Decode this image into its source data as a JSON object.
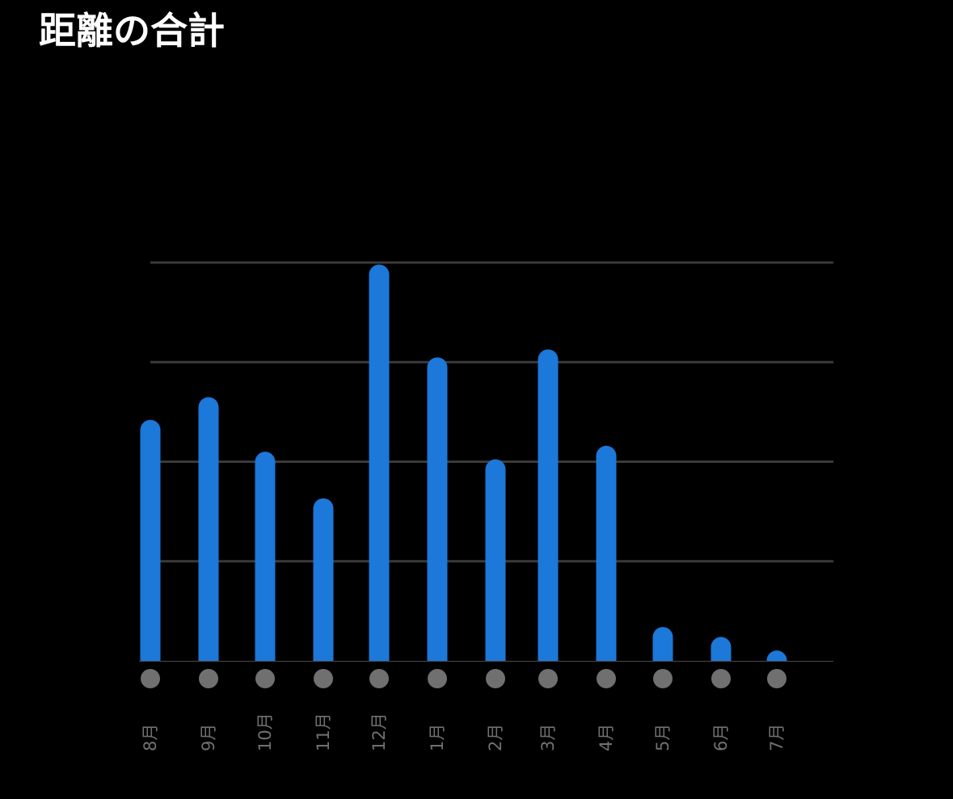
{
  "header": {
    "title": "距離の合計"
  },
  "colors": {
    "background": "#000000",
    "bar": "#1c78d9",
    "gridline": "#3a3a3a",
    "baseline": "#4a4a4a",
    "marker": "#707070",
    "tick_label": "#707070",
    "title": "#ffffff"
  },
  "chart_data": {
    "type": "bar",
    "title": "距離の合計",
    "xlabel": "",
    "ylabel": "",
    "categories": [
      "8月",
      "9月",
      "10月",
      "11月",
      "12月",
      "1月",
      "2月",
      "3月",
      "4月",
      "5月",
      "6月",
      "7月"
    ],
    "values": [
      60.5,
      66.2,
      52.5,
      40.8,
      99.5,
      76.2,
      50.6,
      78.2,
      54.0,
      8.5,
      6.0,
      2.6
    ],
    "ylim": [
      0,
      100
    ],
    "y_gridlines": [
      25,
      50,
      75,
      100
    ],
    "y_tick_labels_visible": false,
    "grid": true,
    "category_markers": "gray dot under each bar",
    "tick_label_rotation": "vertical"
  }
}
